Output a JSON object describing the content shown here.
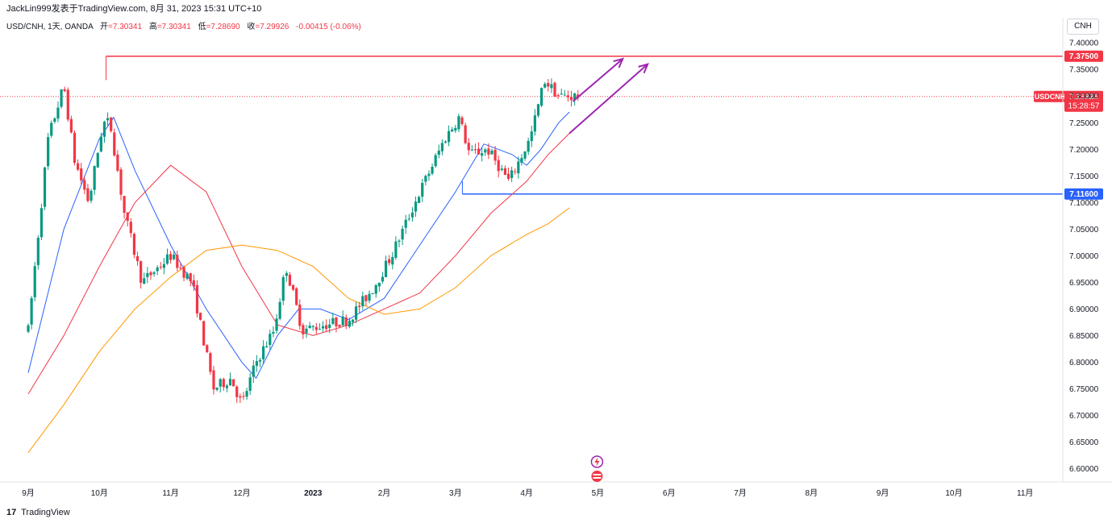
{
  "header": {
    "publisher": "JackLin999发表于TradingView.com, 8月 31, 2023 15:31 UTC+10"
  },
  "legend": {
    "symbol": "USD/CNH, 1天, OANDA",
    "open_label": "开",
    "open": "=7.30341",
    "high_label": "高",
    "high": "=7.30341",
    "low_label": "低",
    "low": "=7.28690",
    "close_label": "收",
    "close": "=7.29926",
    "change": "-0.00415 (-0.06%)"
  },
  "currency_button": "CNH",
  "footer": {
    "logo_glyph": "17",
    "brand": "TradingView"
  },
  "colors": {
    "up": "#089981",
    "down": "#f23645",
    "ma_short": "#2962ff",
    "ma_mid": "#f23645",
    "ma_long": "#ff9800",
    "resistance": "#f23645",
    "support": "#2962ff",
    "arrows": "#9c27b0"
  },
  "chart_data": {
    "type": "candlestick",
    "instrument": "USDCNH",
    "timeframe": "1D",
    "x_tick_labels": [
      "9月",
      "10月",
      "11月",
      "12月",
      "2023",
      "2月",
      "3月",
      "4月",
      "5月",
      "6月",
      "7月",
      "8月",
      "9月",
      "10月",
      "11月"
    ],
    "y_ticks": [
      "7.40000",
      "7.35000",
      "7.30000",
      "7.25000",
      "7.20000",
      "7.15000",
      "7.10000",
      "7.05000",
      "7.00000",
      "6.95000",
      "6.90000",
      "6.85000",
      "6.80000",
      "6.75000",
      "6.70000",
      "6.65000",
      "6.60000"
    ],
    "ylim": [
      6.575,
      7.42
    ],
    "current_price": {
      "label": "USDCNH",
      "value": "7.29926",
      "countdown": "15:28:57"
    },
    "levels": [
      {
        "value": 7.375,
        "label": "7.37500",
        "color": "#f23645"
      },
      {
        "value": 7.116,
        "label": "7.11600",
        "color": "#2962ff"
      }
    ],
    "price_path": [
      [
        0,
        6.86
      ],
      [
        0.28,
        7.22
      ],
      [
        0.5,
        7.32
      ],
      [
        0.65,
        7.18
      ],
      [
        0.85,
        7.1
      ],
      [
        1.05,
        7.25
      ],
      [
        1.15,
        7.25
      ],
      [
        1.35,
        7.08
      ],
      [
        1.6,
        6.95
      ],
      [
        2.0,
        7.0
      ],
      [
        2.3,
        6.95
      ],
      [
        2.6,
        6.75
      ],
      [
        2.85,
        6.77
      ],
      [
        3.0,
        6.72
      ],
      [
        3.2,
        6.8
      ],
      [
        3.45,
        6.86
      ],
      [
        3.62,
        6.98
      ],
      [
        3.85,
        6.86
      ],
      [
        4.15,
        6.87
      ],
      [
        4.5,
        6.88
      ],
      [
        4.85,
        6.94
      ],
      [
        5.1,
        7.0
      ],
      [
        5.5,
        7.12
      ],
      [
        5.85,
        7.22
      ],
      [
        6.05,
        7.26
      ],
      [
        6.2,
        7.19
      ],
      [
        6.45,
        7.2
      ],
      [
        6.75,
        7.14
      ],
      [
        7.05,
        7.22
      ],
      [
        7.25,
        7.33
      ],
      [
        7.45,
        7.3
      ],
      [
        7.75,
        7.3
      ]
    ],
    "moving_averages": [
      {
        "color": "#2962ff",
        "points": [
          [
            0,
            6.78
          ],
          [
            0.5,
            7.05
          ],
          [
            1.0,
            7.22
          ],
          [
            1.2,
            7.26
          ],
          [
            1.5,
            7.16
          ],
          [
            2.0,
            7.02
          ],
          [
            2.5,
            6.9
          ],
          [
            3.0,
            6.8
          ],
          [
            3.2,
            6.77
          ],
          [
            3.5,
            6.85
          ],
          [
            3.8,
            6.9
          ],
          [
            4.1,
            6.9
          ],
          [
            4.5,
            6.88
          ],
          [
            5.0,
            6.92
          ],
          [
            5.5,
            7.02
          ],
          [
            6.0,
            7.12
          ],
          [
            6.4,
            7.21
          ],
          [
            6.8,
            7.19
          ],
          [
            7.0,
            7.17
          ],
          [
            7.2,
            7.2
          ],
          [
            7.45,
            7.25
          ],
          [
            7.6,
            7.27
          ]
        ]
      },
      {
        "color": "#f23645",
        "points": [
          [
            0,
            6.74
          ],
          [
            0.5,
            6.85
          ],
          [
            1.0,
            6.98
          ],
          [
            1.5,
            7.1
          ],
          [
            2.0,
            7.17
          ],
          [
            2.5,
            7.12
          ],
          [
            3.0,
            6.98
          ],
          [
            3.5,
            6.87
          ],
          [
            4.0,
            6.85
          ],
          [
            4.5,
            6.87
          ],
          [
            5.0,
            6.9
          ],
          [
            5.5,
            6.93
          ],
          [
            6.0,
            7.0
          ],
          [
            6.5,
            7.08
          ],
          [
            7.0,
            7.14
          ],
          [
            7.3,
            7.19
          ],
          [
            7.6,
            7.23
          ]
        ]
      },
      {
        "color": "#ff9800",
        "points": [
          [
            0,
            6.63
          ],
          [
            0.5,
            6.72
          ],
          [
            1.0,
            6.82
          ],
          [
            1.5,
            6.9
          ],
          [
            2.0,
            6.96
          ],
          [
            2.5,
            7.01
          ],
          [
            3.0,
            7.02
          ],
          [
            3.5,
            7.01
          ],
          [
            4.0,
            6.98
          ],
          [
            4.5,
            6.92
          ],
          [
            5.0,
            6.89
          ],
          [
            5.5,
            6.9
          ],
          [
            6.0,
            6.94
          ],
          [
            6.5,
            7.0
          ],
          [
            7.0,
            7.04
          ],
          [
            7.3,
            7.06
          ],
          [
            7.6,
            7.09
          ]
        ]
      }
    ],
    "arrows": [
      {
        "from": [
          7.65,
          7.29
        ],
        "to": [
          8.35,
          7.37
        ]
      },
      {
        "from": [
          7.6,
          7.23
        ],
        "to": [
          8.7,
          7.36
        ]
      }
    ],
    "grid": false,
    "legend": "top-left"
  }
}
